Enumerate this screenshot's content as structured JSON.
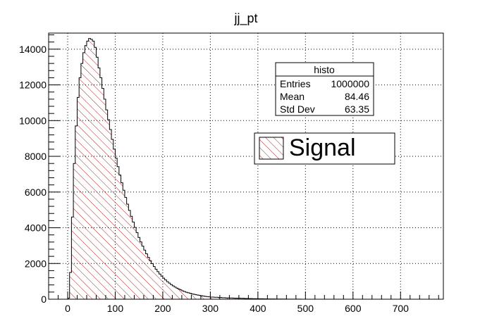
{
  "chart_data": {
    "type": "histogram",
    "title": "jj_pt",
    "xlabel": "",
    "ylabel": "",
    "xlim": [
      -40,
      790
    ],
    "ylim": [
      0,
      14900
    ],
    "x_ticks": [
      0,
      100,
      200,
      300,
      400,
      500,
      600,
      700
    ],
    "y_ticks": [
      0,
      2000,
      4000,
      6000,
      8000,
      10000,
      12000,
      14000
    ],
    "grid": true,
    "bin_width": 4,
    "fill_style": "hatched",
    "colors": {
      "line": "#000000",
      "hatch": "#b22222",
      "frame": "#000000",
      "grid": "#000000"
    },
    "series": [
      {
        "name": "Signal",
        "x": [
          0,
          4,
          8,
          12,
          16,
          20,
          24,
          28,
          32,
          36,
          40,
          44,
          48,
          52,
          56,
          60,
          64,
          68,
          72,
          76,
          80,
          84,
          88,
          92,
          96,
          100,
          104,
          108,
          112,
          116,
          120,
          124,
          128,
          132,
          136,
          140,
          144,
          148,
          152,
          156,
          160,
          164,
          168,
          172,
          176,
          180,
          184,
          188,
          192,
          196,
          200,
          204,
          208,
          212,
          216,
          220,
          224,
          228,
          232,
          236,
          240,
          244,
          248,
          252,
          256,
          260,
          264,
          268,
          272,
          276,
          280,
          284,
          288,
          292,
          296,
          300,
          308,
          316,
          324,
          332,
          340,
          348,
          356,
          364,
          372,
          380,
          388,
          396,
          404,
          412,
          420,
          428,
          436,
          444,
          452,
          460,
          468,
          476,
          484,
          492,
          500
        ],
        "values": [
          60,
          1500,
          4600,
          7600,
          9700,
          11300,
          12400,
          13200,
          13800,
          14200,
          14450,
          14600,
          14550,
          14450,
          14100,
          13550,
          12950,
          12400,
          11800,
          11200,
          10600,
          10050,
          9500,
          8950,
          8400,
          7900,
          7420,
          6950,
          6520,
          6100,
          5700,
          5320,
          4970,
          4640,
          4320,
          4020,
          3730,
          3460,
          3210,
          2970,
          2750,
          2540,
          2340,
          2160,
          1990,
          1830,
          1680,
          1540,
          1410,
          1290,
          1180,
          1080,
          980,
          900,
          820,
          750,
          680,
          620,
          570,
          520,
          470,
          430,
          390,
          360,
          330,
          300,
          275,
          250,
          230,
          210,
          190,
          175,
          160,
          145,
          132,
          120,
          108,
          97,
          86,
          76,
          68,
          60,
          53,
          47,
          41,
          36,
          31,
          27,
          23,
          20,
          17,
          14,
          12,
          10,
          8,
          6,
          5,
          4,
          3,
          2,
          1
        ]
      }
    ],
    "stats_box": {
      "name": "histo",
      "rows": [
        {
          "label": "Entries",
          "value": "1000000"
        },
        {
          "label": "Mean",
          "value": "84.46"
        },
        {
          "label": "Std Dev",
          "value": "63.35"
        }
      ]
    },
    "legend": {
      "label": "Signal",
      "position": "top-right"
    }
  }
}
